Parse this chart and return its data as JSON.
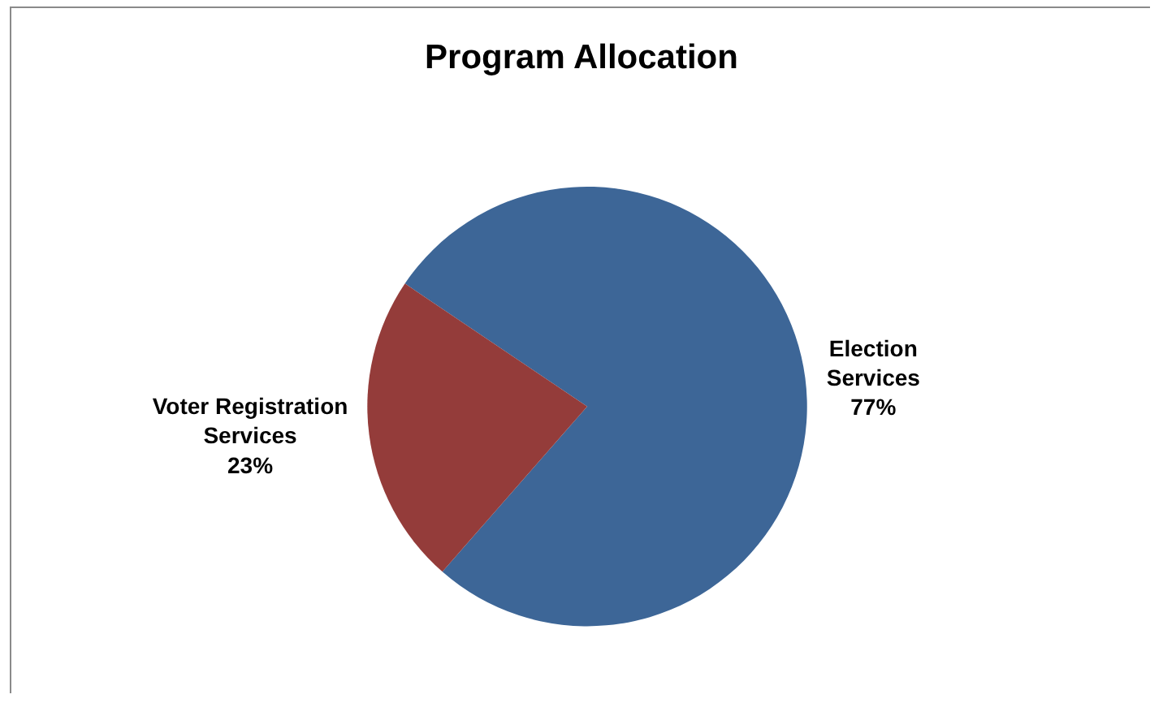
{
  "chart_data": {
    "type": "pie",
    "title": "Program Allocation",
    "categories": [
      "Election Services",
      "Voter Registration Services"
    ],
    "values": [
      77,
      23
    ],
    "value_labels": [
      "77%",
      "23%"
    ],
    "colors": [
      "#3d6697",
      "#943c3a"
    ],
    "legend": false
  }
}
